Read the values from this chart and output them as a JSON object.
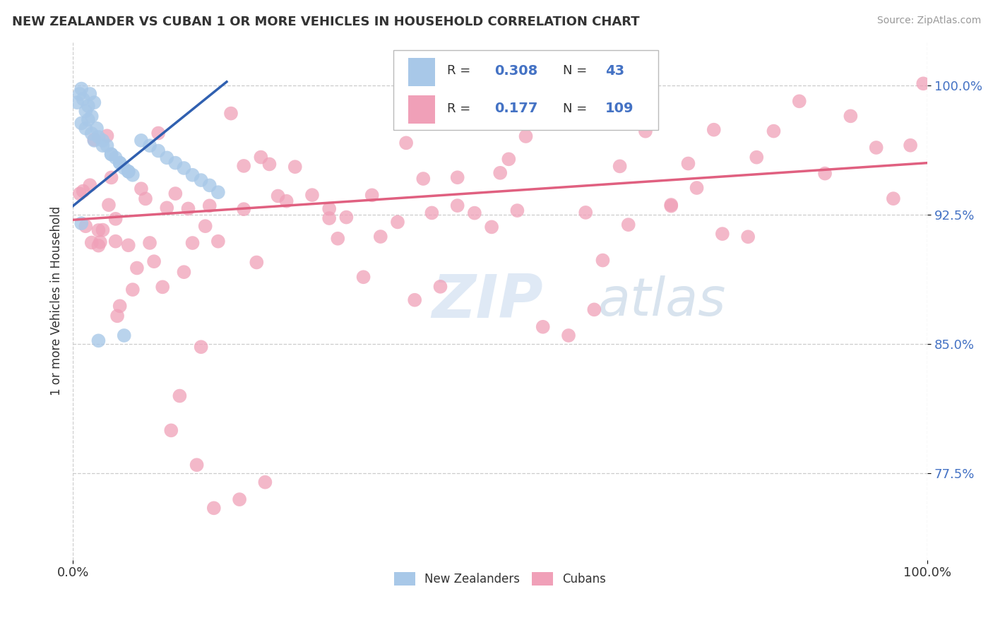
{
  "title": "NEW ZEALANDER VS CUBAN 1 OR MORE VEHICLES IN HOUSEHOLD CORRELATION CHART",
  "source": "Source: ZipAtlas.com",
  "ylabel": "1 or more Vehicles in Household",
  "xlim": [
    0.0,
    1.0
  ],
  "ylim": [
    0.725,
    1.025
  ],
  "ytick_vals": [
    0.775,
    0.85,
    0.925,
    1.0
  ],
  "ytick_labels": [
    "77.5%",
    "85.0%",
    "92.5%",
    "100.0%"
  ],
  "xtick_vals": [
    0.0,
    1.0
  ],
  "xtick_labels": [
    "0.0%",
    "100.0%"
  ],
  "legend_labels": [
    "New Zealanders",
    "Cubans"
  ],
  "R_nz": 0.308,
  "N_nz": 43,
  "R_cu": 0.177,
  "N_cu": 109,
  "nz_color": "#a8c8e8",
  "cu_color": "#f0a0b8",
  "nz_line_color": "#3060b0",
  "cu_line_color": "#e06080",
  "watermark_color": "#d0dff0",
  "background_color": "#ffffff",
  "nz_line_x0": 0.0,
  "nz_line_y0": 0.93,
  "nz_line_x1": 0.18,
  "nz_line_y1": 1.002,
  "cu_line_x0": 0.0,
  "cu_line_y0": 0.922,
  "cu_line_x1": 1.0,
  "cu_line_y1": 0.955
}
